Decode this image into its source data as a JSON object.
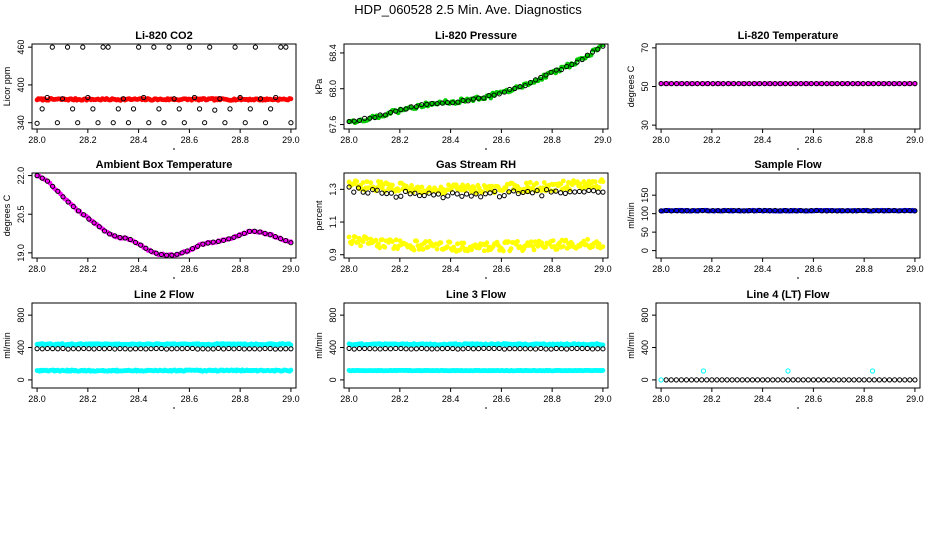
{
  "figure": {
    "title": "HDP_060528  2.5 Min. Ave. Diagnostics"
  },
  "chart_data": [
    {
      "id": "co2",
      "type": "scatter",
      "title": "Li-820 CO2",
      "xlabel": "",
      "ylabel": "Licor ppm",
      "xlim": [
        27.98,
        29.02
      ],
      "ylim": [
        330,
        465
      ],
      "xticks": [
        28.0,
        28.2,
        28.4,
        28.6,
        28.8,
        29.0
      ],
      "xtick_labels": [
        "28.0",
        "28.2",
        "28.4",
        "28.6",
        "28.8",
        "29.0"
      ],
      "yticks": [
        340,
        400,
        460
      ],
      "ytick_labels": [
        "340",
        "400",
        "460"
      ],
      "series": [
        {
          "name": "Li-820 CO2 (red)",
          "color": "#ff0000",
          "kind": "band",
          "filled": true,
          "n": 180,
          "x": [
            28.0,
            29.0
          ],
          "base": [
            377,
            377
          ],
          "amp": 1.5
        },
        {
          "name": "Li-820 CO2 (black)",
          "color": "#000000",
          "kind": "points",
          "filled": false,
          "x": [
            28.0,
            28.02,
            28.04,
            28.06,
            28.08,
            28.1,
            28.12,
            28.14,
            28.16,
            28.18,
            28.2,
            28.22,
            28.24,
            28.26,
            28.28,
            28.3,
            28.32,
            28.34,
            28.36,
            28.38,
            28.4,
            28.42,
            28.44,
            28.46,
            28.48,
            28.5,
            28.52,
            28.54,
            28.56,
            28.58,
            28.6,
            28.62,
            28.64,
            28.66,
            28.68,
            28.7,
            28.72,
            28.74,
            28.76,
            28.78,
            28.8,
            28.82,
            28.84,
            28.86,
            28.88,
            28.9,
            28.92,
            28.94,
            28.96,
            28.98,
            29.0
          ],
          "y": [
            339,
            362,
            380,
            460,
            340,
            378,
            460,
            362,
            340,
            460,
            380,
            362,
            340,
            460,
            460,
            340,
            362,
            378,
            340,
            362,
            460,
            380,
            340,
            460,
            362,
            340,
            460,
            378,
            362,
            340,
            460,
            380,
            362,
            340,
            460,
            360,
            378,
            340,
            362,
            460,
            380,
            340,
            362,
            460,
            378,
            340,
            362,
            380,
            460,
            460,
            340
          ]
        }
      ]
    },
    {
      "id": "pressure",
      "type": "scatter",
      "title": "Li-820 Pressure",
      "xlabel": "",
      "ylabel": "kPa",
      "xlim": [
        27.98,
        29.02
      ],
      "ylim": [
        67.55,
        68.5
      ],
      "xticks": [
        28.0,
        28.2,
        28.4,
        28.6,
        28.8,
        29.0
      ],
      "xtick_labels": [
        "28.0",
        "28.2",
        "28.4",
        "28.6",
        "28.8",
        "29.0"
      ],
      "yticks": [
        67.6,
        68.0,
        68.4
      ],
      "ytick_labels": [
        "67.6",
        "68.0",
        "68.4"
      ],
      "series": [
        {
          "name": "Pressure (green)",
          "color": "#00cc00",
          "kind": "band",
          "filled": true,
          "n": 130,
          "x": [
            28.0,
            28.1,
            28.2,
            28.3,
            28.4,
            28.5,
            28.6,
            28.7,
            28.8,
            28.9,
            29.0
          ],
          "base": [
            67.63,
            67.68,
            67.76,
            67.83,
            67.85,
            67.88,
            67.95,
            68.05,
            68.18,
            68.3,
            68.48
          ],
          "amp": 0.025
        },
        {
          "name": "Pressure (black)",
          "color": "#000000",
          "kind": "band",
          "filled": false,
          "n": 50,
          "x": [
            28.0,
            28.1,
            28.2,
            28.3,
            28.4,
            28.5,
            28.6,
            28.7,
            28.8,
            28.9,
            29.0
          ],
          "base": [
            67.63,
            67.68,
            67.76,
            67.83,
            67.85,
            67.88,
            67.95,
            68.05,
            68.18,
            68.3,
            68.48
          ],
          "amp": 0.01
        }
      ]
    },
    {
      "id": "temperature",
      "type": "scatter",
      "title": "Li-820 Temperature",
      "xlabel": "",
      "ylabel": "degrees C",
      "xlim": [
        27.98,
        29.02
      ],
      "ylim": [
        28,
        72
      ],
      "xticks": [
        28.0,
        28.2,
        28.4,
        28.6,
        28.8,
        29.0
      ],
      "xtick_labels": [
        "28.0",
        "28.2",
        "28.4",
        "28.6",
        "28.8",
        "29.0"
      ],
      "yticks": [
        30,
        50,
        70
      ],
      "ytick_labels": [
        "30",
        "50",
        "70"
      ],
      "series": [
        {
          "name": "Temperature (magenta)",
          "color": "#ff00ff",
          "kind": "band",
          "filled": true,
          "n": 70,
          "x": [
            28.0,
            29.0
          ],
          "base": [
            51.5,
            51.5
          ],
          "amp": 0
        },
        {
          "name": "Temperature (black)",
          "color": "#000000",
          "kind": "band",
          "filled": false,
          "n": 50,
          "x": [
            28.0,
            29.0
          ],
          "base": [
            51.5,
            51.5
          ],
          "amp": 0
        }
      ]
    },
    {
      "id": "ambient",
      "type": "scatter",
      "title": "Ambient Box Temperature",
      "xlabel": "",
      "ylabel": "degrees C",
      "xlim": [
        27.98,
        29.02
      ],
      "ylim": [
        18.8,
        22.1
      ],
      "xticks": [
        28.0,
        28.2,
        28.4,
        28.6,
        28.8,
        29.0
      ],
      "xtick_labels": [
        "28.0",
        "28.2",
        "28.4",
        "28.6",
        "28.8",
        "29.0"
      ],
      "yticks": [
        19.0,
        20.5,
        22.0
      ],
      "ytick_labels": [
        "19.0",
        "20.5",
        "22.0"
      ],
      "series": [
        {
          "name": "Ambient (magenta)",
          "color": "#ff00ff",
          "kind": "band",
          "filled": true,
          "n": 120,
          "x": [
            28.0,
            28.04,
            28.08,
            28.12,
            28.16,
            28.2,
            28.24,
            28.28,
            28.32,
            28.36,
            28.4,
            28.44,
            28.48,
            28.52,
            28.56,
            28.6,
            28.64,
            28.68,
            28.72,
            28.76,
            28.8,
            28.84,
            28.88,
            28.92,
            28.96,
            29.0
          ],
          "base": [
            22.0,
            21.8,
            21.4,
            21.0,
            20.65,
            20.35,
            20.05,
            19.75,
            19.6,
            19.55,
            19.35,
            19.1,
            18.95,
            18.9,
            18.95,
            19.1,
            19.3,
            19.4,
            19.45,
            19.55,
            19.7,
            19.85,
            19.8,
            19.7,
            19.55,
            19.4
          ],
          "amp": 0.03
        },
        {
          "name": "Ambient (black)",
          "color": "#000000",
          "kind": "band",
          "filled": false,
          "n": 50,
          "x": [
            28.0,
            28.04,
            28.08,
            28.12,
            28.16,
            28.2,
            28.24,
            28.28,
            28.32,
            28.36,
            28.4,
            28.44,
            28.48,
            28.52,
            28.56,
            28.6,
            28.64,
            28.68,
            28.72,
            28.76,
            28.8,
            28.84,
            28.88,
            28.92,
            28.96,
            29.0
          ],
          "base": [
            22.0,
            21.8,
            21.4,
            21.0,
            20.65,
            20.35,
            20.05,
            19.75,
            19.6,
            19.55,
            19.35,
            19.1,
            18.95,
            18.9,
            18.95,
            19.1,
            19.3,
            19.4,
            19.45,
            19.55,
            19.7,
            19.85,
            19.8,
            19.7,
            19.55,
            19.4
          ],
          "amp": 0.01
        }
      ]
    },
    {
      "id": "rh",
      "type": "scatter",
      "title": "Gas Stream RH",
      "xlabel": "",
      "ylabel": "percent",
      "xlim": [
        27.98,
        29.02
      ],
      "ylim": [
        0.88,
        1.4
      ],
      "xticks": [
        28.0,
        28.2,
        28.4,
        28.6,
        28.8,
        29.0
      ],
      "xtick_labels": [
        "28.0",
        "28.2",
        "28.4",
        "28.6",
        "28.8",
        "29.0"
      ],
      "yticks": [
        0.9,
        1.1,
        1.3
      ],
      "ytick_labels": [
        "0.9",
        "1.1",
        "1.3"
      ],
      "series": [
        {
          "name": "RH high (yellow)",
          "color": "#ffff00",
          "kind": "band",
          "filled": true,
          "n": 200,
          "x": [
            28.0,
            28.2,
            28.4,
            28.6,
            28.8,
            29.0
          ],
          "base": [
            1.33,
            1.31,
            1.3,
            1.31,
            1.32,
            1.33
          ],
          "amp": 0.03
        },
        {
          "name": "RH low (yellow)",
          "color": "#ffff00",
          "kind": "band",
          "filled": true,
          "n": 200,
          "x": [
            28.0,
            28.2,
            28.4,
            28.6,
            28.8,
            29.0
          ],
          "base": [
            0.99,
            0.96,
            0.95,
            0.95,
            0.96,
            0.97
          ],
          "amp": 0.03
        },
        {
          "name": "RH (black)",
          "color": "#000000",
          "kind": "band",
          "filled": false,
          "n": 55,
          "x": [
            28.0,
            28.2,
            28.4,
            28.6,
            28.8,
            29.0
          ],
          "base": [
            1.3,
            1.27,
            1.26,
            1.27,
            1.28,
            1.29
          ],
          "amp": 0.02
        }
      ]
    },
    {
      "id": "sample",
      "type": "scatter",
      "title": "Sample Flow",
      "xlabel": "",
      "ylabel": "ml/min",
      "xlim": [
        27.98,
        29.02
      ],
      "ylim": [
        -20,
        210
      ],
      "xticks": [
        28.0,
        28.2,
        28.4,
        28.6,
        28.8,
        29.0
      ],
      "xtick_labels": [
        "28.0",
        "28.2",
        "28.4",
        "28.6",
        "28.8",
        "29.0"
      ],
      "yticks": [
        0,
        50,
        100,
        150
      ],
      "ytick_labels": [
        "0",
        "50",
        "100",
        "150"
      ],
      "series": [
        {
          "name": "Sample (blue)",
          "color": "#0000ff",
          "kind": "band",
          "filled": true,
          "n": 200,
          "x": [
            28.0,
            29.0
          ],
          "base": [
            108,
            108
          ],
          "amp": 1.2
        },
        {
          "name": "Sample (black)",
          "color": "#000000",
          "kind": "band",
          "filled": false,
          "n": 50,
          "x": [
            28.0,
            29.0
          ],
          "base": [
            108,
            108
          ],
          "amp": 0.5
        }
      ]
    },
    {
      "id": "line2",
      "type": "scatter",
      "title": "Line 2 Flow",
      "xlabel": "",
      "ylabel": "ml/min",
      "xlim": [
        27.98,
        29.02
      ],
      "ylim": [
        -100,
        950
      ],
      "xticks": [
        28.0,
        28.2,
        28.4,
        28.6,
        28.8,
        29.0
      ],
      "xtick_labels": [
        "28.0",
        "28.2",
        "28.4",
        "28.6",
        "28.8",
        "29.0"
      ],
      "yticks": [
        0,
        400,
        800
      ],
      "ytick_labels": [
        "0",
        "400",
        "800"
      ],
      "series": [
        {
          "name": "Line 2 high (cyan)",
          "color": "#00ffff",
          "kind": "band",
          "filled": true,
          "n": 220,
          "x": [
            28.0,
            29.0
          ],
          "base": [
            440,
            440
          ],
          "amp": 8
        },
        {
          "name": "Line 2 low (cyan)",
          "color": "#00ffff",
          "kind": "band",
          "filled": true,
          "n": 220,
          "x": [
            28.0,
            29.0
          ],
          "base": [
            115,
            115
          ],
          "amp": 8
        },
        {
          "name": "Line 2 (black)",
          "color": "#000000",
          "kind": "band",
          "filled": false,
          "n": 50,
          "x": [
            28.0,
            29.0
          ],
          "base": [
            385,
            385
          ],
          "amp": 4
        }
      ]
    },
    {
      "id": "line3",
      "type": "scatter",
      "title": "Line 3 Flow",
      "xlabel": "",
      "ylabel": "ml/min",
      "xlim": [
        27.98,
        29.02
      ],
      "ylim": [
        -100,
        950
      ],
      "xticks": [
        28.0,
        28.2,
        28.4,
        28.6,
        28.8,
        29.0
      ],
      "xtick_labels": [
        "28.0",
        "28.2",
        "28.4",
        "28.6",
        "28.8",
        "29.0"
      ],
      "yticks": [
        0,
        400,
        800
      ],
      "ytick_labels": [
        "0",
        "400",
        "800"
      ],
      "series": [
        {
          "name": "Line 3 high (cyan)",
          "color": "#00ffff",
          "kind": "band",
          "filled": true,
          "n": 220,
          "x": [
            28.0,
            29.0
          ],
          "base": [
            440,
            440
          ],
          "amp": 8
        },
        {
          "name": "Line 3 low (cyan)",
          "color": "#00ffff",
          "kind": "band",
          "filled": true,
          "n": 220,
          "x": [
            28.0,
            29.0
          ],
          "base": [
            115,
            115
          ],
          "amp": 3
        },
        {
          "name": "Line 3 (black)",
          "color": "#000000",
          "kind": "band",
          "filled": false,
          "n": 50,
          "x": [
            28.0,
            29.0
          ],
          "base": [
            385,
            385
          ],
          "amp": 4
        }
      ]
    },
    {
      "id": "line4",
      "type": "scatter",
      "title": "Line 4 (LT) Flow",
      "xlabel": "",
      "ylabel": "ml/min",
      "xlim": [
        27.98,
        29.02
      ],
      "ylim": [
        -100,
        950
      ],
      "xticks": [
        28.0,
        28.2,
        28.4,
        28.6,
        28.8,
        29.0
      ],
      "xtick_labels": [
        "28.0",
        "28.2",
        "28.4",
        "28.6",
        "28.8",
        "29.0"
      ],
      "yticks": [
        0,
        400,
        800
      ],
      "ytick_labels": [
        "0",
        "400",
        "800"
      ],
      "series": [
        {
          "name": "Line 4 (cyan)",
          "color": "#00ffff",
          "kind": "points",
          "filled": false,
          "x": [
            28.0,
            28.167,
            28.5,
            28.833
          ],
          "y": [
            0,
            110,
            110,
            110
          ]
        },
        {
          "name": "Line 4 (black)",
          "color": "#000000",
          "kind": "band",
          "filled": false,
          "n": 50,
          "x": [
            28.02,
            29.0
          ],
          "base": [
            0,
            0
          ],
          "amp": 0
        }
      ]
    }
  ]
}
